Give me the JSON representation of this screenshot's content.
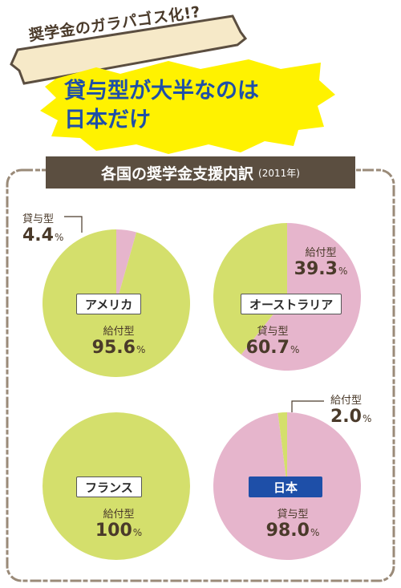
{
  "header": {
    "tag": "奨学金のガラパゴス化!?",
    "headline_line1": "貸与型が大半なのは",
    "headline_line2": "日本だけ"
  },
  "panel": {
    "title": "各国の奨学金支援内訳",
    "year": "(2011年)"
  },
  "colors": {
    "kyufu_green": "#d4df6c",
    "taiyo_pink": "#e6b5cc",
    "title_bar": "#5b4e40",
    "headline_blue": "#1e4fa8",
    "burst_yellow": "#fff200",
    "frame_brown": "#9a8a78"
  },
  "percent_unit": "%",
  "chart_data": [
    {
      "type": "pie",
      "country": "アメリカ",
      "slices": [
        {
          "name": "給付型",
          "value": 95.6,
          "label": "95.6"
        },
        {
          "name": "貸与型",
          "value": 4.4,
          "label": "4.4"
        }
      ]
    },
    {
      "type": "pie",
      "country": "オーストラリア",
      "slices": [
        {
          "name": "給付型",
          "value": 39.3,
          "label": "39.3"
        },
        {
          "name": "貸与型",
          "value": 60.7,
          "label": "60.7"
        }
      ]
    },
    {
      "type": "pie",
      "country": "フランス",
      "slices": [
        {
          "name": "給付型",
          "value": 100,
          "label": "100"
        }
      ]
    },
    {
      "type": "pie",
      "country": "日本",
      "slices": [
        {
          "name": "給付型",
          "value": 2.0,
          "label": "2.0"
        },
        {
          "name": "貸与型",
          "value": 98.0,
          "label": "98.0"
        }
      ]
    }
  ]
}
